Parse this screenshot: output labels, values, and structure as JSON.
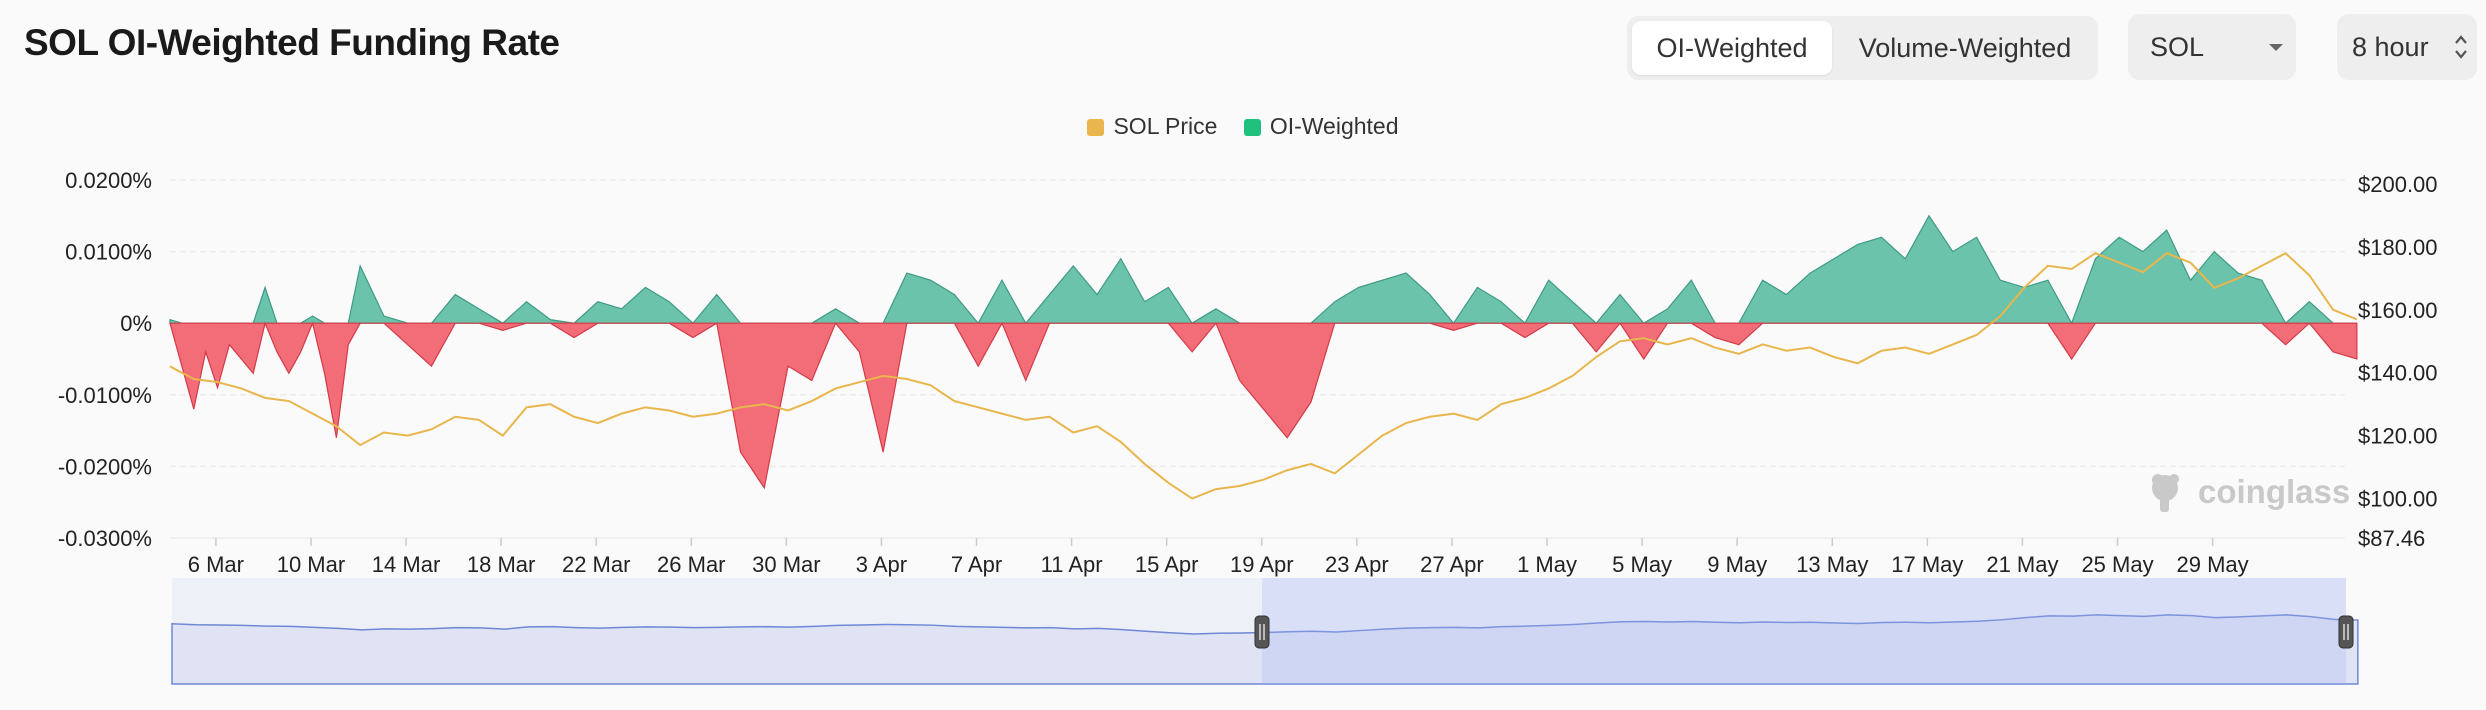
{
  "header": {
    "title": "SOL OI-Weighted Funding Rate"
  },
  "toggle": {
    "options": [
      "OI-Weighted",
      "Volume-Weighted"
    ],
    "active": 0
  },
  "symbol_select": {
    "value": "SOL"
  },
  "interval_select": {
    "value": "8 hour"
  },
  "watermark": {
    "text": "coinglass"
  },
  "colors": {
    "price": "#e8b64c",
    "positive": "#6cc3ac",
    "negative": "#f26d77",
    "navigator": "#6f87d6"
  },
  "chart_data": {
    "type": "line",
    "legend": [
      "SOL Price",
      "OI-Weighted"
    ],
    "legend_position": "top-center",
    "grid": true,
    "x_ticks": [
      "6 Mar",
      "10 Mar",
      "14 Mar",
      "18 Mar",
      "22 Mar",
      "26 Mar",
      "30 Mar",
      "3 Apr",
      "7 Apr",
      "11 Apr",
      "15 Apr",
      "19 Apr",
      "23 Apr",
      "27 Apr",
      "1 May",
      "5 May",
      "9 May",
      "13 May",
      "17 May",
      "21 May",
      "25 May",
      "29 May"
    ],
    "y_left_ticks": [
      "0.0200%",
      "0.0100%",
      "0%",
      "-0.0100%",
      "-0.0200%",
      "-0.0300%"
    ],
    "y_right_ticks": [
      "$200.00",
      "$180.00",
      "$160.00",
      "$140.00",
      "$120.00",
      "$100.00",
      "$87.46"
    ],
    "ylim_left": [
      -0.03,
      0.02
    ],
    "ylim_right": [
      87.46,
      200
    ],
    "x_range_days": [
      0,
      91.5
    ],
    "series": [
      {
        "name": "SOL Price",
        "axis": "right",
        "points": [
          [
            0,
            142
          ],
          [
            1,
            138
          ],
          [
            2,
            137
          ],
          [
            3,
            135
          ],
          [
            4,
            132
          ],
          [
            5,
            131
          ],
          [
            6,
            127
          ],
          [
            7,
            123
          ],
          [
            8,
            117
          ],
          [
            9,
            121
          ],
          [
            10,
            120
          ],
          [
            11,
            122
          ],
          [
            12,
            126
          ],
          [
            13,
            125
          ],
          [
            14,
            120
          ],
          [
            15,
            129
          ],
          [
            16,
            130
          ],
          [
            17,
            126
          ],
          [
            18,
            124
          ],
          [
            19,
            127
          ],
          [
            20,
            129
          ],
          [
            21,
            128
          ],
          [
            22,
            126
          ],
          [
            23,
            127
          ],
          [
            24,
            129
          ],
          [
            25,
            130
          ],
          [
            26,
            128
          ],
          [
            27,
            131
          ],
          [
            28,
            135
          ],
          [
            29,
            137
          ],
          [
            30,
            139
          ],
          [
            31,
            138
          ],
          [
            32,
            136
          ],
          [
            33,
            131
          ],
          [
            34,
            129
          ],
          [
            35,
            127
          ],
          [
            36,
            125
          ],
          [
            37,
            126
          ],
          [
            38,
            121
          ],
          [
            39,
            123
          ],
          [
            40,
            118
          ],
          [
            41,
            111
          ],
          [
            42,
            105
          ],
          [
            43,
            100
          ],
          [
            44,
            103
          ],
          [
            45,
            104
          ],
          [
            46,
            106
          ],
          [
            47,
            109
          ],
          [
            48,
            111
          ],
          [
            49,
            108
          ],
          [
            50,
            114
          ],
          [
            51,
            120
          ],
          [
            52,
            124
          ],
          [
            53,
            126
          ],
          [
            54,
            127
          ],
          [
            55,
            125
          ],
          [
            56,
            130
          ],
          [
            57,
            132
          ],
          [
            58,
            135
          ],
          [
            59,
            139
          ],
          [
            60,
            145
          ],
          [
            61,
            150
          ],
          [
            62,
            151
          ],
          [
            63,
            149
          ],
          [
            64,
            151
          ],
          [
            65,
            148
          ],
          [
            66,
            146
          ],
          [
            67,
            149
          ],
          [
            68,
            147
          ],
          [
            69,
            148
          ],
          [
            70,
            145
          ],
          [
            71,
            143
          ],
          [
            72,
            147
          ],
          [
            73,
            148
          ],
          [
            74,
            146
          ],
          [
            75,
            149
          ],
          [
            76,
            152
          ],
          [
            77,
            158
          ],
          [
            78,
            167
          ],
          [
            79,
            174
          ],
          [
            80,
            173
          ],
          [
            81,
            178
          ],
          [
            82,
            175
          ],
          [
            83,
            172
          ],
          [
            84,
            178
          ],
          [
            85,
            175
          ],
          [
            86,
            167
          ],
          [
            87,
            170
          ],
          [
            88,
            174
          ],
          [
            89,
            178
          ],
          [
            90,
            171
          ],
          [
            91,
            160
          ],
          [
            92,
            157
          ]
        ]
      },
      {
        "name": "OI-Weighted",
        "axis": "left",
        "points": [
          [
            0,
            0.0005
          ],
          [
            0.5,
            -0.006
          ],
          [
            1,
            -0.012
          ],
          [
            1.5,
            -0.004
          ],
          [
            2,
            -0.009
          ],
          [
            2.5,
            -0.003
          ],
          [
            3,
            -0.005
          ],
          [
            3.5,
            -0.007
          ],
          [
            4,
            0.005
          ],
          [
            4.5,
            -0.004
          ],
          [
            5,
            -0.007
          ],
          [
            5.5,
            -0.004
          ],
          [
            6,
            0.001
          ],
          [
            6.5,
            -0.007
          ],
          [
            7,
            -0.016
          ],
          [
            7.5,
            -0.003
          ],
          [
            8,
            0.008
          ],
          [
            9,
            0.001
          ],
          [
            10,
            -0.003
          ],
          [
            11,
            -0.006
          ],
          [
            12,
            0.004
          ],
          [
            13,
            0.002
          ],
          [
            14,
            -0.001
          ],
          [
            15,
            0.003
          ],
          [
            16,
            0.0005
          ],
          [
            17,
            -0.002
          ],
          [
            18,
            0.003
          ],
          [
            19,
            0.002
          ],
          [
            20,
            0.005
          ],
          [
            21,
            0.003
          ],
          [
            22,
            -0.002
          ],
          [
            23,
            0.004
          ],
          [
            24,
            -0.018
          ],
          [
            25,
            -0.023
          ],
          [
            26,
            -0.006
          ],
          [
            27,
            -0.008
          ],
          [
            28,
            0.002
          ],
          [
            29,
            -0.004
          ],
          [
            30,
            -0.018
          ],
          [
            31,
            0.007
          ],
          [
            32,
            0.006
          ],
          [
            33,
            0.004
          ],
          [
            34,
            -0.006
          ],
          [
            35,
            0.006
          ],
          [
            36,
            -0.008
          ],
          [
            37,
            0.004
          ],
          [
            38,
            0.008
          ],
          [
            39,
            0.004
          ],
          [
            40,
            0.009
          ],
          [
            41,
            0.003
          ],
          [
            42,
            0.005
          ],
          [
            43,
            -0.004
          ],
          [
            44,
            0.002
          ],
          [
            45,
            -0.008
          ],
          [
            46,
            -0.012
          ],
          [
            47,
            -0.016
          ],
          [
            48,
            -0.011
          ],
          [
            49,
            0.003
          ],
          [
            50,
            0.005
          ],
          [
            51,
            0.006
          ],
          [
            52,
            0.007
          ],
          [
            53,
            0.004
          ],
          [
            54,
            -0.001
          ],
          [
            55,
            0.005
          ],
          [
            56,
            0.003
          ],
          [
            57,
            -0.002
          ],
          [
            58,
            0.006
          ],
          [
            59,
            0.003
          ],
          [
            60,
            -0.004
          ],
          [
            61,
            0.004
          ],
          [
            62,
            -0.005
          ],
          [
            63,
            0.002
          ],
          [
            64,
            0.006
          ],
          [
            65,
            -0.002
          ],
          [
            66,
            -0.003
          ],
          [
            67,
            0.006
          ],
          [
            68,
            0.004
          ],
          [
            69,
            0.007
          ],
          [
            70,
            0.009
          ],
          [
            71,
            0.011
          ],
          [
            72,
            0.012
          ],
          [
            73,
            0.009
          ],
          [
            74,
            0.015
          ],
          [
            75,
            0.01
          ],
          [
            76,
            0.012
          ],
          [
            77,
            0.006
          ],
          [
            78,
            0.005
          ],
          [
            79,
            0.006
          ],
          [
            80,
            -0.005
          ],
          [
            81,
            0.009
          ],
          [
            82,
            0.012
          ],
          [
            83,
            0.01
          ],
          [
            84,
            0.013
          ],
          [
            85,
            0.006
          ],
          [
            86,
            0.01
          ],
          [
            87,
            0.007
          ],
          [
            88,
            0.006
          ],
          [
            89,
            -0.003
          ],
          [
            90,
            0.003
          ],
          [
            91,
            -0.004
          ],
          [
            92,
            -0.005
          ]
        ]
      }
    ]
  }
}
